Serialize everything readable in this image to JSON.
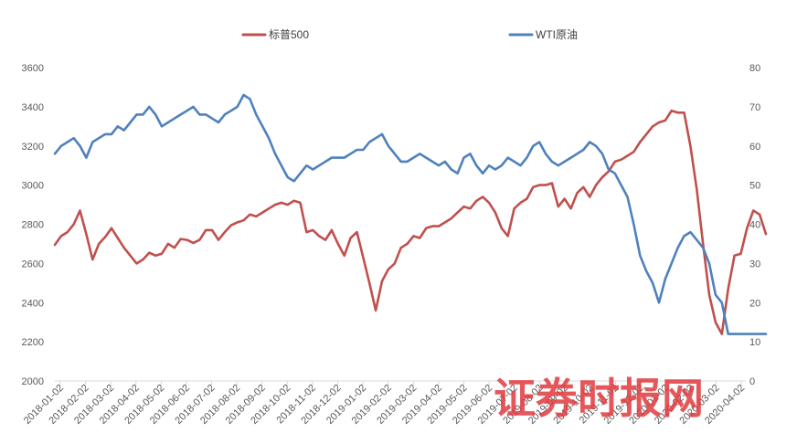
{
  "chart_data": {
    "type": "line",
    "title": "",
    "xlabel": "",
    "ylabel": "",
    "legend_position": "top",
    "grid": false,
    "y_left": {
      "min": 2000,
      "max": 3600,
      "step": 200
    },
    "y_right": {
      "min": 0,
      "max": 80,
      "step": 10
    },
    "x_tick_labels": [
      "2018-01-02",
      "2018-02-02",
      "2018-03-02",
      "2018-04-02",
      "2018-05-02",
      "2018-06-02",
      "2018-07-02",
      "2018-08-02",
      "2018-09-02",
      "2018-10-02",
      "2018-11-02",
      "2018-12-02",
      "2019-01-02",
      "2019-02-02",
      "2019-03-02",
      "2019-04-02",
      "2019-05-02",
      "2019-06-02",
      "2019-07-02",
      "2019-08-02",
      "2019-09-02",
      "2019-10-02",
      "2019-11-02",
      "2019-12-02",
      "2020-01-02",
      "2020-02-02",
      "2020-03-02",
      "2020-04-02"
    ],
    "series": [
      {
        "name": "标普500",
        "axis": "left",
        "color": "#C0504D",
        "values": [
          2695,
          2740,
          2760,
          2800,
          2870,
          2750,
          2620,
          2700,
          2735,
          2780,
          2730,
          2680,
          2640,
          2600,
          2620,
          2655,
          2640,
          2650,
          2700,
          2680,
          2725,
          2720,
          2705,
          2720,
          2770,
          2770,
          2720,
          2760,
          2795,
          2810,
          2820,
          2850,
          2840,
          2860,
          2880,
          2900,
          2910,
          2900,
          2920,
          2910,
          2760,
          2770,
          2740,
          2720,
          2770,
          2700,
          2640,
          2730,
          2760,
          2630,
          2500,
          2360,
          2510,
          2570,
          2600,
          2680,
          2700,
          2740,
          2730,
          2780,
          2790,
          2790,
          2810,
          2830,
          2860,
          2890,
          2880,
          2920,
          2940,
          2910,
          2860,
          2780,
          2740,
          2880,
          2910,
          2930,
          2990,
          3000,
          3000,
          3010,
          2890,
          2930,
          2880,
          2960,
          2990,
          2940,
          3000,
          3040,
          3070,
          3120,
          3130,
          3150,
          3170,
          3220,
          3260,
          3300,
          3320,
          3330,
          3380,
          3370,
          3370,
          3200,
          2980,
          2700,
          2440,
          2300,
          2240,
          2470,
          2640,
          2650,
          2780,
          2870,
          2850,
          2750
        ]
      },
      {
        "name": "WTI原油",
        "axis": "right",
        "color": "#4F81BD",
        "values": [
          58,
          60,
          61,
          62,
          60,
          57,
          61,
          62,
          63,
          63,
          65,
          64,
          66,
          68,
          68,
          70,
          68,
          65,
          66,
          67,
          68,
          69,
          70,
          68,
          68,
          67,
          66,
          68,
          69,
          70,
          73,
          72,
          68,
          65,
          62,
          58,
          55,
          52,
          51,
          53,
          55,
          54,
          55,
          56,
          57,
          57,
          57,
          58,
          59,
          59,
          61,
          62,
          63,
          60,
          58,
          56,
          56,
          57,
          58,
          57,
          56,
          55,
          56,
          54,
          53,
          57,
          58,
          55,
          53,
          55,
          54,
          55,
          57,
          56,
          55,
          57,
          60,
          61,
          58,
          56,
          55,
          56,
          57,
          58,
          59,
          61,
          60,
          58,
          54,
          53,
          50,
          47,
          40,
          32,
          28,
          25,
          20,
          26,
          30,
          34,
          37,
          38,
          36,
          34,
          30,
          22,
          20,
          12,
          12,
          12,
          12,
          12,
          12,
          12
        ]
      }
    ]
  },
  "watermark": {
    "text": "证券时报网"
  },
  "colors": {
    "axis": "#D9D9D9",
    "text": "#595959",
    "background": "#FFFFFF",
    "watermark": "#E0393E"
  }
}
